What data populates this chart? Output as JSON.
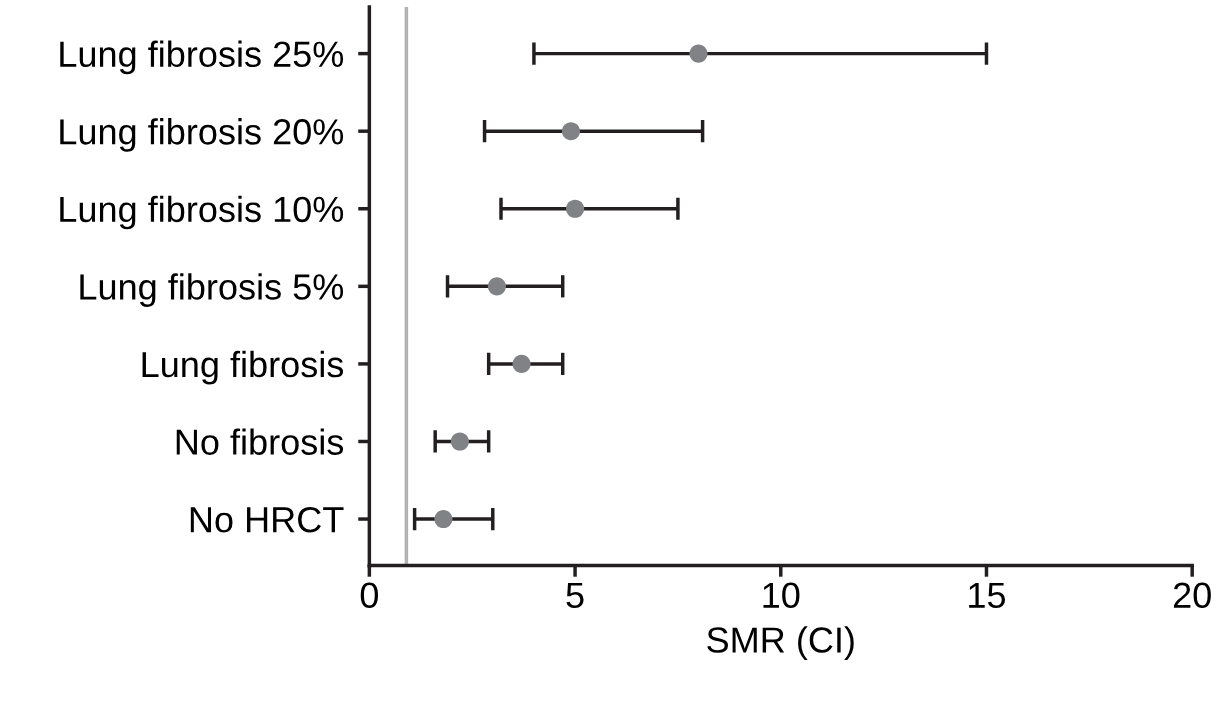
{
  "chart_data": {
    "type": "scatter",
    "orientation": "horizontal",
    "xlabel": "SMR (CI)",
    "categories": [
      "Lung fibrosis 25%",
      "Lung fibrosis 20%",
      "Lung fibrosis 10%",
      "Lung fibrosis 5%",
      "Lung fibrosis",
      "No fibrosis",
      "No HRCT"
    ],
    "series": [
      {
        "color": "#808285",
        "values": [
          8.0,
          4.9,
          5.0,
          3.1,
          3.7,
          2.2,
          1.8
        ],
        "errors": [
          [
            4.0,
            15.0
          ],
          [
            2.8,
            8.1
          ],
          [
            3.2,
            7.5
          ],
          [
            1.9,
            4.7
          ],
          [
            2.9,
            4.7
          ],
          [
            1.6,
            2.9
          ],
          [
            1.1,
            3.0
          ]
        ]
      }
    ],
    "xlim": [
      0,
      20
    ],
    "xticks": [
      0,
      5,
      10,
      15,
      20
    ],
    "ref_lines": [
      {
        "axis": "x",
        "value": 0.9,
        "color": "#b3b3b3"
      }
    ],
    "grid": false,
    "legend": false,
    "marker": "circle"
  }
}
